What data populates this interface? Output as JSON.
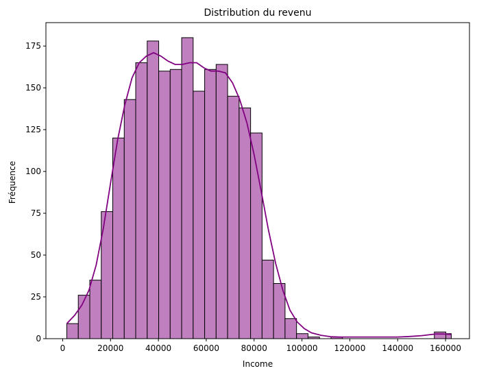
{
  "chart_data": {
    "type": "bar",
    "title": "Distribution du revenu",
    "xlabel": "Income",
    "ylabel": "Fréquence",
    "xlim": [
      -7000,
      170000
    ],
    "ylim": [
      0,
      189
    ],
    "xticks": [
      0,
      20000,
      40000,
      60000,
      80000,
      100000,
      120000,
      140000,
      160000
    ],
    "yticks": [
      0,
      25,
      50,
      75,
      100,
      125,
      150,
      175
    ],
    "grid": false,
    "bar_color": "#c080c0",
    "edge_color": "#000000",
    "kde_color": "#800080",
    "bins": [
      {
        "x0": 1730,
        "x1": 6530,
        "count": 9
      },
      {
        "x0": 6530,
        "x1": 11330,
        "count": 26
      },
      {
        "x0": 11330,
        "x1": 16130,
        "count": 35
      },
      {
        "x0": 16130,
        "x1": 20930,
        "count": 76
      },
      {
        "x0": 20930,
        "x1": 25730,
        "count": 120
      },
      {
        "x0": 25730,
        "x1": 30530,
        "count": 143
      },
      {
        "x0": 30530,
        "x1": 35330,
        "count": 165
      },
      {
        "x0": 35330,
        "x1": 40130,
        "count": 178
      },
      {
        "x0": 40130,
        "x1": 44930,
        "count": 160
      },
      {
        "x0": 44930,
        "x1": 49730,
        "count": 161
      },
      {
        "x0": 49730,
        "x1": 54530,
        "count": 180
      },
      {
        "x0": 54530,
        "x1": 59330,
        "count": 148
      },
      {
        "x0": 59330,
        "x1": 64130,
        "count": 161
      },
      {
        "x0": 64130,
        "x1": 68930,
        "count": 164
      },
      {
        "x0": 68930,
        "x1": 73730,
        "count": 145
      },
      {
        "x0": 73730,
        "x1": 78530,
        "count": 138
      },
      {
        "x0": 78530,
        "x1": 83330,
        "count": 123
      },
      {
        "x0": 83330,
        "x1": 88130,
        "count": 47
      },
      {
        "x0": 88130,
        "x1": 92930,
        "count": 33
      },
      {
        "x0": 92930,
        "x1": 97730,
        "count": 12
      },
      {
        "x0": 97730,
        "x1": 102530,
        "count": 3
      },
      {
        "x0": 102530,
        "x1": 107330,
        "count": 1
      },
      {
        "x0": 107330,
        "x1": 112130,
        "count": 0
      },
      {
        "x0": 112130,
        "x1": 116930,
        "count": 1
      },
      {
        "x0": 116930,
        "x1": 121730,
        "count": 0
      },
      {
        "x0": 121730,
        "x1": 126530,
        "count": 0
      },
      {
        "x0": 126530,
        "x1": 131330,
        "count": 0
      },
      {
        "x0": 131330,
        "x1": 136130,
        "count": 0
      },
      {
        "x0": 136130,
        "x1": 140930,
        "count": 0
      },
      {
        "x0": 140930,
        "x1": 145730,
        "count": 0
      },
      {
        "x0": 145730,
        "x1": 150530,
        "count": 0
      },
      {
        "x0": 150530,
        "x1": 155330,
        "count": 0
      },
      {
        "x0": 155330,
        "x1": 160130,
        "count": 4
      },
      {
        "x0": 160130,
        "x1": 162400,
        "count": 3
      }
    ],
    "kde": {
      "x": [
        1730,
        5000,
        8000,
        11000,
        14000,
        17000,
        20000,
        23000,
        26000,
        29000,
        32000,
        35000,
        38000,
        41000,
        44000,
        47000,
        50000,
        53000,
        56000,
        59000,
        62000,
        65000,
        68000,
        71000,
        74000,
        77000,
        80000,
        83000,
        86000,
        89000,
        92000,
        95000,
        98000,
        101000,
        104000,
        108000,
        112000,
        116000,
        120000,
        125000,
        130000,
        135000,
        140000,
        145000,
        150000,
        153000,
        156000,
        159000,
        162400
      ],
      "y": [
        9,
        14,
        20,
        29,
        44,
        66,
        93,
        119,
        140,
        156,
        165,
        169,
        171,
        169,
        166,
        164,
        164,
        165,
        165,
        162,
        160,
        160,
        159,
        153,
        143,
        129,
        110,
        88,
        65,
        45,
        29,
        17,
        10,
        6,
        3.5,
        2,
        1.2,
        1,
        1,
        1,
        1,
        1,
        1,
        1.3,
        1.8,
        2.3,
        2.8,
        2.8,
        2.5
      ]
    }
  }
}
